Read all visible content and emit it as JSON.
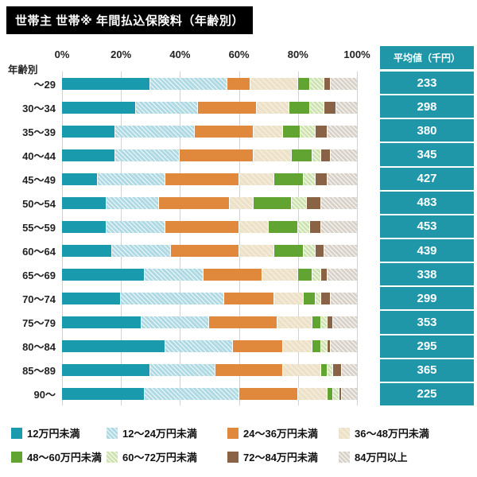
{
  "title": "世帯主 世帯※ 年間払込保険料（年齢別）",
  "axis": {
    "y_label": "年齢別",
    "x_ticks": [
      "0%",
      "20%",
      "40%",
      "60%",
      "80%",
      "100%"
    ]
  },
  "avg_panel": {
    "header": "平均値（千円）",
    "values": [
      "233",
      "298",
      "380",
      "345",
      "427",
      "483",
      "453",
      "439",
      "338",
      "299",
      "353",
      "295",
      "365",
      "225"
    ]
  },
  "colors": {
    "teal": "#1A9AAD",
    "light_cyan": "#AFDAE3",
    "orange": "#E0883C",
    "beige": "#EDE1C8",
    "green": "#61A431",
    "pale_green": "#CFE3B2",
    "brown": "#8A6246",
    "gray": "#D9D2C8",
    "panel_bg": "#1F97A8",
    "title_bg": "#000000",
    "title_fg": "#FFFFFF"
  },
  "chart_data": {
    "type": "bar",
    "orientation": "horizontal-stacked",
    "x_range": [
      0,
      100
    ],
    "unit": "%",
    "grid": true,
    "legend_position": "bottom",
    "title": "世帯主 世帯※ 年間払込保険料（年齢別）",
    "categories": [
      "～29",
      "30～34",
      "35～39",
      "40～44",
      "45～49",
      "50～54",
      "55～59",
      "60～64",
      "65～69",
      "70～74",
      "75～79",
      "80～84",
      "85～89",
      "90～"
    ],
    "series": [
      {
        "name": "12万円未満",
        "color_key": "teal",
        "pattern": "solid",
        "values": [
          30,
          25,
          18,
          18,
          12,
          15,
          15,
          17,
          28,
          20,
          27,
          35,
          30,
          28
        ]
      },
      {
        "name": "12～24万円未満",
        "color_key": "light_cyan",
        "pattern": "hatch",
        "values": [
          26,
          21,
          27,
          22,
          23,
          18,
          20,
          20,
          20,
          35,
          23,
          23,
          22,
          32
        ]
      },
      {
        "name": "24～36万円未満",
        "color_key": "orange",
        "pattern": "solid",
        "values": [
          8,
          20,
          20,
          25,
          25,
          24,
          25,
          23,
          20,
          17,
          23,
          17,
          23,
          20
        ]
      },
      {
        "name": "36～48万円未満",
        "color_key": "beige",
        "pattern": "hatch-light",
        "values": [
          16,
          11,
          10,
          13,
          12,
          8,
          10,
          12,
          12,
          10,
          12,
          10,
          13,
          10
        ]
      },
      {
        "name": "48～60万円未満",
        "color_key": "green",
        "pattern": "solid",
        "values": [
          4,
          7,
          6,
          7,
          10,
          13,
          10,
          10,
          5,
          4,
          3,
          3,
          2,
          2
        ]
      },
      {
        "name": "60～72万円未満",
        "color_key": "pale_green",
        "pattern": "hatch",
        "values": [
          5,
          5,
          5,
          3,
          4,
          5,
          4,
          4,
          3,
          2,
          2,
          2,
          2,
          2
        ]
      },
      {
        "name": "72～84万円未満",
        "color_key": "brown",
        "pattern": "solid",
        "values": [
          2,
          4,
          4,
          3,
          4,
          5,
          4,
          3,
          2,
          3,
          2,
          1,
          3,
          1
        ]
      },
      {
        "name": "84万円以上",
        "color_key": "gray",
        "pattern": "hatch",
        "values": [
          9,
          7,
          10,
          9,
          10,
          12,
          12,
          11,
          10,
          9,
          8,
          9,
          5,
          5
        ]
      }
    ]
  }
}
